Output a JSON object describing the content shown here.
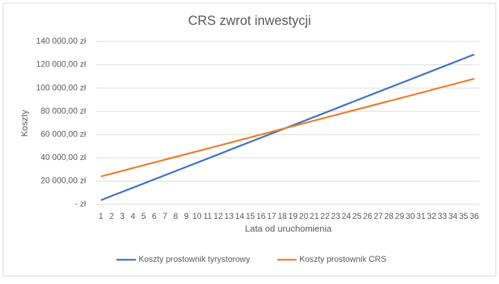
{
  "chart_data": {
    "type": "line",
    "title": "CRS zwrot inwestycji",
    "x_label": "Lata od uruchomienia",
    "y_label": "Koszty",
    "categories": [
      1,
      2,
      3,
      4,
      5,
      6,
      7,
      8,
      9,
      10,
      11,
      12,
      13,
      14,
      15,
      16,
      17,
      18,
      19,
      20,
      21,
      22,
      23,
      24,
      25,
      26,
      27,
      28,
      29,
      30,
      31,
      32,
      33,
      34,
      35,
      36
    ],
    "series": [
      {
        "name": "Koszty prostownik tyrystorowy",
        "color": "#4472c4",
        "values": [
          3600,
          7180,
          10760,
          14340,
          17920,
          21500,
          25080,
          28660,
          32240,
          35820,
          39400,
          42980,
          46560,
          50140,
          53720,
          57300,
          60880,
          64460,
          68040,
          71620,
          75200,
          78780,
          82360,
          85940,
          89520,
          93100,
          96680,
          100260,
          103840,
          107420,
          111000,
          114580,
          118160,
          121740,
          125320,
          128900
        ]
      },
      {
        "name": "Koszty prostownik CRS",
        "color": "#ed7d31",
        "values": [
          24000,
          26400,
          28800,
          31200,
          33600,
          36000,
          38400,
          40800,
          43200,
          45600,
          48000,
          50400,
          52800,
          55200,
          57600,
          60000,
          62400,
          64800,
          67200,
          69600,
          72000,
          74400,
          76800,
          79200,
          81600,
          84000,
          86400,
          88800,
          91200,
          93600,
          96000,
          98400,
          100800,
          103200,
          105600,
          108000
        ]
      }
    ],
    "ylim": [
      0,
      140000
    ],
    "yticks": [
      {
        "value": 0,
        "label": "-  zł"
      },
      {
        "value": 20000,
        "label": "20 000,00 zł"
      },
      {
        "value": 40000,
        "label": "40 000,00 zł"
      },
      {
        "value": 60000,
        "label": "60 000,00 zł"
      },
      {
        "value": 80000,
        "label": "80 000,00 zł"
      },
      {
        "value": 100000,
        "label": "100 000,00 zł"
      },
      {
        "value": 120000,
        "label": "120 000,00 zł"
      },
      {
        "value": 140000,
        "label": "140 000,00 zł"
      }
    ],
    "grid": true,
    "legend": "bottom"
  }
}
